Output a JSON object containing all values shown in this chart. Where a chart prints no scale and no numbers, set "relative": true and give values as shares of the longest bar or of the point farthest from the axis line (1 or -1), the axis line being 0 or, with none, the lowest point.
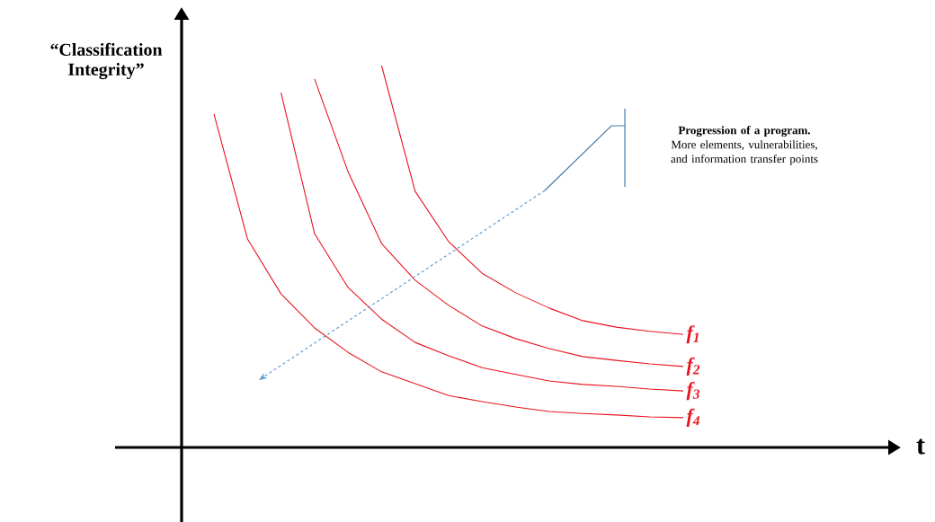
{
  "chart_data": {
    "type": "line",
    "relative": true,
    "ylabel": "“Classification Integrity”",
    "categories": [
      null,
      null,
      null,
      null,
      null,
      null,
      null,
      null,
      null,
      null,
      null,
      null,
      null,
      null,
      null
    ],
    "series": [
      {
        "name": "f$_{1}$",
        "color": "#e8141e",
        "values": [
          null,
          null,
          null,
          null,
          null,
          1.0,
          0.671,
          0.539,
          0.456,
          0.405,
          0.365,
          0.332,
          0.315,
          0.304,
          0.296
        ]
      },
      {
        "name": "f$_{2}$",
        "color": "#e8141e",
        "values": [
          null,
          null,
          null,
          0.965,
          0.722,
          0.534,
          0.438,
          0.372,
          0.318,
          0.285,
          0.259,
          0.238,
          0.228,
          0.219,
          0.212
        ]
      },
      {
        "name": "f$_{3}$",
        "color": "#e8141e",
        "values": [
          null,
          null,
          0.929,
          0.56,
          0.419,
          0.336,
          0.275,
          0.24,
          0.209,
          0.191,
          0.174,
          0.165,
          0.16,
          0.153,
          0.148
        ]
      },
      {
        "name": "f$_{4}$",
        "color": "#e8141e",
        "values": [
          0.873,
          0.546,
          0.402,
          0.313,
          0.249,
          0.198,
          0.167,
          0.136,
          0.12,
          0.106,
          0.094,
          0.089,
          0.085,
          0.08,
          0.078
        ]
      }
    ],
    "annotations": [
      "**Progression of a program.** More elements, vulnerabilities, and information transfer points",
      "t"
    ]
  }
}
